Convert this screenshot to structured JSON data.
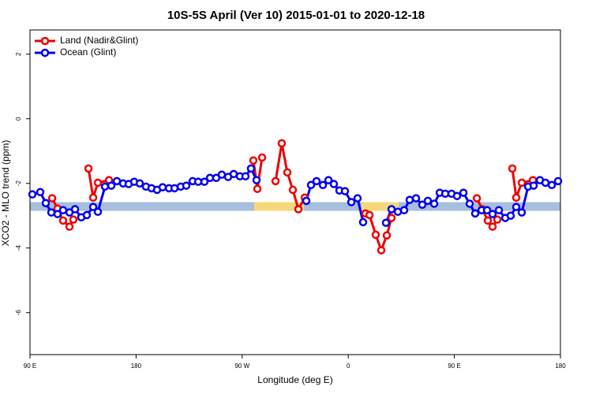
{
  "chart_data": {
    "type": "line",
    "title": "10S-5S April (Ver 10)   2015-01-01 to 2020-12-18",
    "xlabel": "Longitude (deg E)",
    "ylabel": "XCO2 - MLO trend (ppm)",
    "xlim": [
      90,
      540
    ],
    "ylim": [
      -7.3,
      2.75
    ],
    "xticks": [
      {
        "value": 90,
        "label": "90 E"
      },
      180,
      {
        "value": 270,
        "label": "90 W"
      },
      {
        "value": 360,
        "label": "0"
      },
      {
        "value": 450,
        "label": "90 E"
      },
      {
        "value": 540,
        "label": "180"
      }
    ],
    "yticks": [
      2,
      0,
      -2,
      -4,
      -6
    ],
    "legend": "top-left",
    "band": {
      "ylim": [
        -2.85,
        -2.58
      ],
      "segments": [
        {
          "x": [
            90,
            280.2
          ],
          "color": "#a7bfdc"
        },
        {
          "x": [
            280.2,
            322.4
          ],
          "color": "#f7d77c"
        },
        {
          "x": [
            322.4,
            371.3
          ],
          "color": "#a7bfdc"
        },
        {
          "x": [
            371.3,
            402.8
          ],
          "color": "#f7d77c"
        },
        {
          "x": [
            402.8,
            540
          ],
          "color": "#a7bfdc"
        }
      ]
    },
    "series": [
      {
        "name": "Land (Nadir&Glint)",
        "color": "#ee0000",
        "x": [
          108.8,
          113.4,
          118.1,
          123.5,
          126.8,
          null,
          139.6,
          143.6,
          147.6,
          157.0,
          null,
          279.5,
          282.9,
          286.9,
          null,
          298.3,
          303.6,
          308.3,
          313.0,
          317.7,
          323.1,
          null,
          374.6,
          378.0,
          383.3,
          388.0,
          392.7,
          396.7,
          null,
          469.1,
          473.7,
          478.4,
          482.4,
          486.5,
          null,
          499.2,
          502.5,
          507.2,
          516.6
        ],
        "values": [
          -2.46,
          -2.78,
          -3.15,
          -3.34,
          -3.12,
          null,
          -1.54,
          -2.44,
          -1.98,
          -1.9,
          null,
          -1.29,
          -2.17,
          -1.2,
          null,
          -1.93,
          -0.76,
          -1.66,
          -2.2,
          -2.8,
          -2.44,
          null,
          -2.93,
          -2.98,
          -3.59,
          -4.07,
          -3.61,
          -3.07,
          null,
          -2.46,
          -2.8,
          -3.15,
          -3.34,
          -3.12,
          null,
          -1.54,
          -2.44,
          -1.98,
          -1.9
        ]
      },
      {
        "name": "Ocean (Glint)",
        "color": "#0000ee",
        "x": [
          92.0,
          98.7,
          103.4,
          108.1,
          113.4,
          118.1,
          123.5,
          128.2,
          133.5,
          138.2,
          143.6,
          147.6,
          153.6,
          159.0,
          163.7,
          169.0,
          173.7,
          178.4,
          183.1,
          188.4,
          193.1,
          197.8,
          202.5,
          207.9,
          212.6,
          217.9,
          222.6,
          228.0,
          232.7,
          238.0,
          242.7,
          248.0,
          252.7,
          258.1,
          262.8,
          268.1,
          272.8,
          277.5,
          282.2,
          null,
          324.4,
          328.4,
          333.1,
          338.5,
          343.2,
          347.8,
          352.5,
          357.2,
          362.6,
          367.9,
          372.6,
          null,
          392.0,
          396.7,
          402.1,
          407.4,
          412.1,
          417.5,
          422.8,
          427.5,
          432.9,
          437.6,
          442.3,
          447.6,
          452.3,
          457.7,
          463.0,
          467.7,
          473.1,
          477.8,
          482.4,
          487.8,
          493.2,
          497.8,
          502.5,
          507.2,
          512.6,
          517.3,
          522.6,
          527.3,
          532.7,
          538.0
        ],
        "values": [
          -2.34,
          -2.27,
          -2.61,
          -2.9,
          -2.95,
          -2.83,
          -2.9,
          -2.8,
          -3.05,
          -2.98,
          -2.73,
          -2.88,
          -2.1,
          -2.07,
          -1.93,
          -2.0,
          -2.02,
          -1.95,
          -2.0,
          -2.1,
          -2.15,
          -2.2,
          -2.12,
          -2.15,
          -2.15,
          -2.1,
          -2.07,
          -1.93,
          -1.95,
          -1.95,
          -1.83,
          -1.83,
          -1.73,
          -1.8,
          -1.71,
          -1.78,
          -1.78,
          -1.54,
          -1.9,
          null,
          -2.54,
          -2.05,
          -1.93,
          -2.05,
          -1.9,
          -2.02,
          -2.22,
          -2.24,
          -2.58,
          -2.46,
          -3.2,
          null,
          -3.22,
          -2.8,
          -2.88,
          -2.83,
          -2.51,
          -2.46,
          -2.66,
          -2.54,
          -2.63,
          -2.29,
          -2.32,
          -2.32,
          -2.39,
          -2.29,
          -2.63,
          -2.93,
          -2.83,
          -2.83,
          -2.95,
          -2.83,
          -3.07,
          -3.0,
          -2.73,
          -2.9,
          -2.1,
          -2.07,
          -1.9,
          -1.98,
          -2.05,
          -1.93
        ]
      }
    ]
  }
}
